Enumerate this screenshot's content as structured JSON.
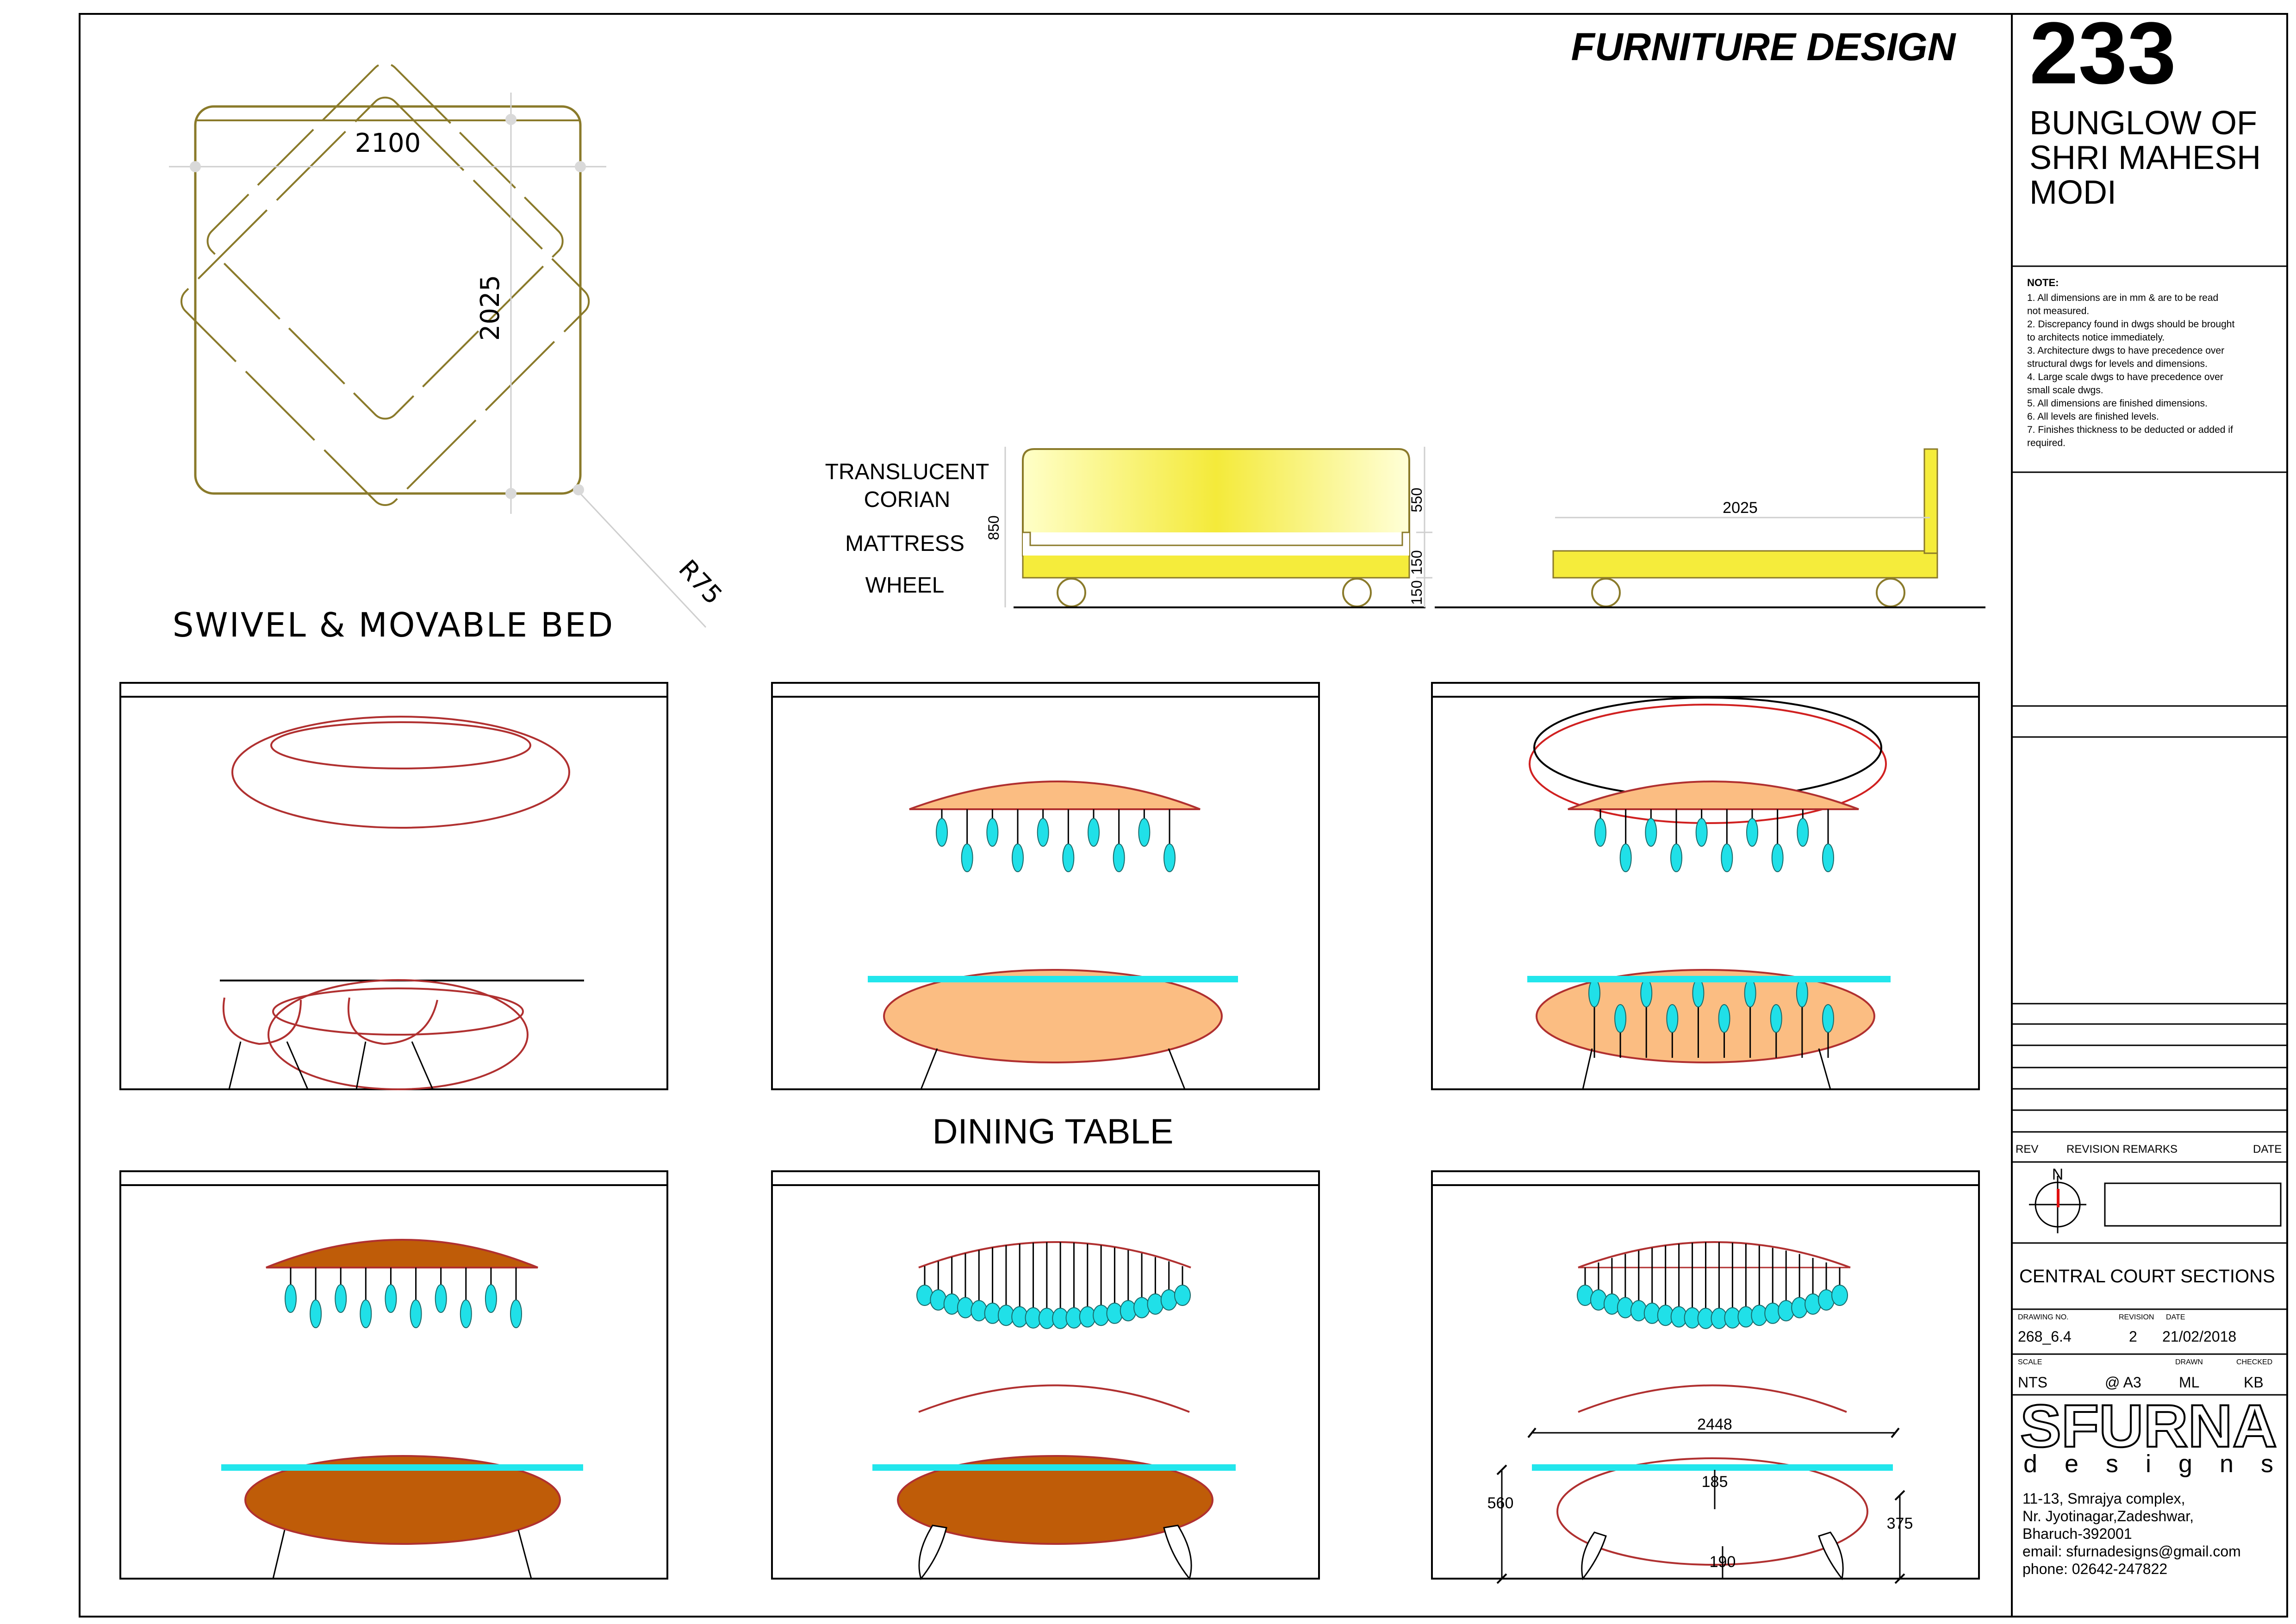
{
  "sheet": {
    "title": "FURNITURE DESIGN"
  },
  "title_block": {
    "sheet_no": "233",
    "project_lines": [
      "BUNGLOW OF",
      "SHRI MAHESH",
      "MODI"
    ],
    "note_heading": "NOTE:",
    "note_lines": [
      "1.   All dimensions are in mm & are to    be read",
      "       not measured.",
      "2.   Discrepancy found in dwgs should be brought",
      "       to architects notice immediately.",
      "3.   Architecture dwgs to have precedence over",
      "       structural dwgs for levels and dimensions.",
      "4.   Large scale dwgs to have precedence over",
      "       small scale dwgs.",
      "5.   All dimensions are finished dimensions.",
      "6.   All levels are finished levels.",
      "7.   Finishes thickness to be deducted or added if",
      "       required."
    ],
    "rev_label": "REV",
    "revision_remarks_label": "REVISION REMARKS",
    "date_label": "DATE",
    "north_label": "N",
    "drawing_title": "CENTRAL COURT SECTIONS",
    "drawing_no_label": "DRAWING NO.",
    "revision_label": "REVISION",
    "date_small_label": "DATE",
    "drawing_no": "268_6.4",
    "revision": "2",
    "date": "21/02/2018",
    "scale_label": "SCALE",
    "drawn_label": "DRAWN",
    "checked_label": "CHECKED",
    "scale": "NTS",
    "paper": "@ A3",
    "drawn": "ML",
    "checked": "KB",
    "firm_name": "SFURNA",
    "firm_sub": "d e s i g n s",
    "address_lines": [
      "11-13,   Smrajya complex,",
      "Nr. Jyotinagar,Zadeshwar,",
      " Bharuch-392001",
      "email:  sfurnadesigns@gmail.com",
      "phone:   02642-247822"
    ]
  },
  "bed_plan": {
    "caption": "SWIVEL & MOVABLE BED",
    "dim_width": "2100",
    "dim_length": "2025",
    "dim_radius": "R75"
  },
  "bed_elevation": {
    "labels": [
      "TRANSLUCENT",
      "CORIAN",
      "MATTRESS",
      "WHEEL"
    ],
    "dim_850": "850",
    "dim_550": "550",
    "dim_150a": "150",
    "dim_150b": "150"
  },
  "bed_side": {
    "dim_2025": "2025"
  },
  "dining": {
    "caption": "DINING TABLE",
    "dim_2448": "2448",
    "dim_560": "560",
    "dim_185": "185",
    "dim_375": "375",
    "dim_190": "190"
  },
  "colors": {
    "frame": "#000000",
    "bed_outline": "#8a7a2a",
    "dining_outline": "#b03030",
    "glass": "#22e6ec",
    "pendant": "#20e0e8",
    "peach": "#fbbd82",
    "wood": "#bf5c08",
    "yellow": "#f5ec3b"
  }
}
